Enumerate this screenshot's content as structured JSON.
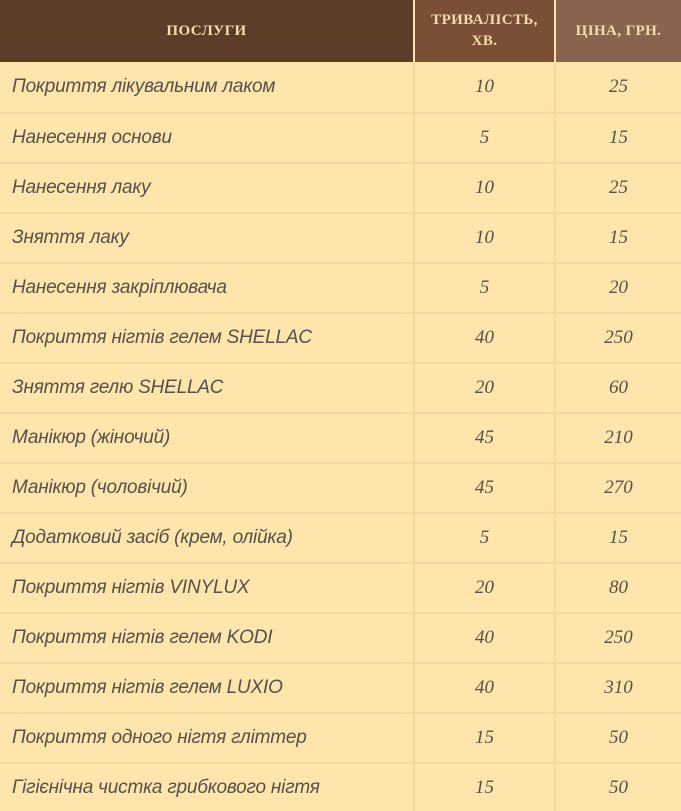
{
  "table": {
    "columns": [
      {
        "id": "services",
        "label": "ПОСЛУГИ"
      },
      {
        "id": "duration",
        "label": "ТРИВАЛІСТЬ, ХВ."
      },
      {
        "id": "price",
        "label": "ЦІНА, ГРН."
      }
    ],
    "rows": [
      {
        "service": "Покриття лікувальним лаком",
        "duration": "10",
        "price": "25"
      },
      {
        "service": "Нанесення основи",
        "duration": "5",
        "price": "15"
      },
      {
        "service": "Нанесення лаку",
        "duration": "10",
        "price": "25"
      },
      {
        "service": "Зняття лаку",
        "duration": "10",
        "price": "15"
      },
      {
        "service": "Нанесення закріплювача",
        "duration": "5",
        "price": "20"
      },
      {
        "service": "Покриття нігтів гелем SHELLAC",
        "duration": "40",
        "price": "250"
      },
      {
        "service": "Зняття гелю SHELLAC",
        "duration": "20",
        "price": "60"
      },
      {
        "service": "Манікюр (жіночий)",
        "duration": "45",
        "price": "210"
      },
      {
        "service": "Манікюр (чоловічий)",
        "duration": "45",
        "price": "270"
      },
      {
        "service": "Додатковий засіб (крем, олійка)",
        "duration": "5",
        "price": "15"
      },
      {
        "service": "Покриття нігтів VINYLUX",
        "duration": "20",
        "price": "80"
      },
      {
        "service": "Покриття нігтів гелем KODI",
        "duration": "40",
        "price": "250"
      },
      {
        "service": "Покриття нігтів гелем LUXIO",
        "duration": "40",
        "price": "310"
      },
      {
        "service": "Покриття одного нігтя гліттер",
        "duration": "15",
        "price": "50"
      },
      {
        "service": "Гігієнічна чистка грибкового нігтя",
        "duration": "15",
        "price": "50"
      }
    ]
  },
  "colors": {
    "header_services_bg": "#5d3d27",
    "header_duration_bg": "#7b4f36",
    "header_price_bg": "#8b6450",
    "header_text": "#f2deaa",
    "row_bg": "#fde5ac",
    "grid_line": "#f8d89a",
    "body_text": "#55514b"
  },
  "chart_data": {
    "type": "table",
    "columns": [
      "ПОСЛУГИ",
      "ТРИВАЛІСТЬ, ХВ.",
      "ЦІНА, ГРН."
    ],
    "rows": [
      [
        "Покриття лікувальним лаком",
        10,
        25
      ],
      [
        "Нанесення основи",
        5,
        15
      ],
      [
        "Нанесення лаку",
        10,
        25
      ],
      [
        "Зняття лаку",
        10,
        15
      ],
      [
        "Нанесення закріплювача",
        5,
        20
      ],
      [
        "Покриття нігтів гелем SHELLAC",
        40,
        250
      ],
      [
        "Зняття гелю SHELLAC",
        20,
        60
      ],
      [
        "Манікюр (жіночий)",
        45,
        210
      ],
      [
        "Манікюр (чоловічий)",
        45,
        270
      ],
      [
        "Додатковий засіб (крем, олійка)",
        5,
        15
      ],
      [
        "Покриття нігтів VINYLUX",
        20,
        80
      ],
      [
        "Покриття нігтів гелем KODI",
        40,
        250
      ],
      [
        "Покриття нігтів гелем LUXIO",
        40,
        310
      ],
      [
        "Покриття одного нігтя гліттер",
        15,
        50
      ],
      [
        "Гігієнічна чистка грибкового нігтя",
        15,
        50
      ]
    ]
  }
}
